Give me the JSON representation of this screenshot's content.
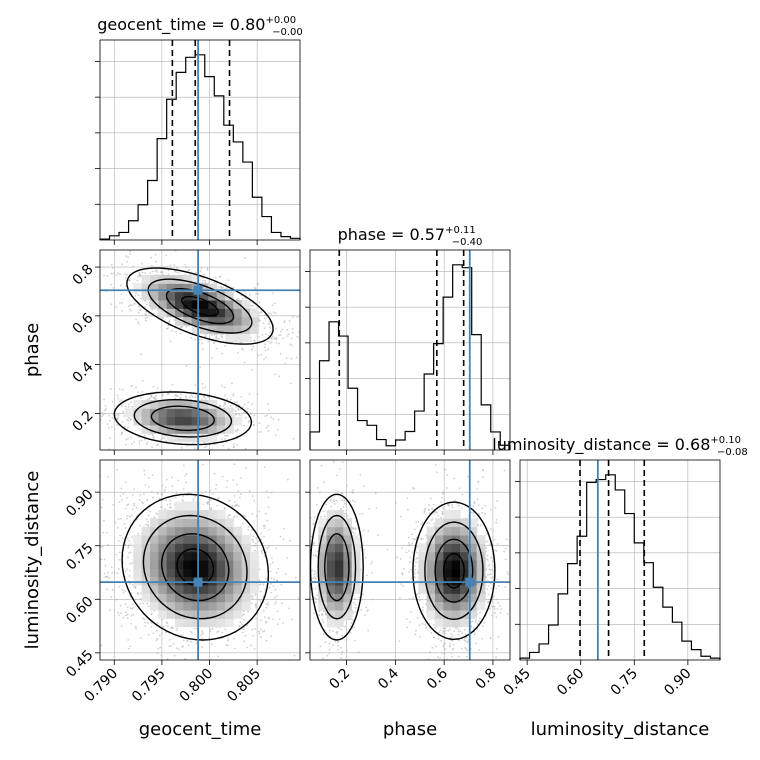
{
  "chart_data": {
    "type": "corner",
    "parameters": [
      "geocent_time",
      "phase",
      "luminosity_distance"
    ],
    "axis_labels": [
      "geocent_time",
      "phase",
      "luminosity_distance"
    ],
    "truths": {
      "geocent_time": 0.7988,
      "phase": 0.705,
      "luminosity_distance": 0.648
    },
    "colors": {
      "truth": "#4682b4",
      "hist": "#000000",
      "grid": "#b0b0b0",
      "scatter": "#b0b0b0"
    },
    "grid": true,
    "ranges": {
      "geocent_time": [
        0.7885,
        0.8095
      ],
      "phase": [
        0.05,
        0.87
      ],
      "luminosity_distance": [
        0.43,
        0.99
      ]
    },
    "ticks": {
      "geocent_time": [
        "0.790",
        "0.795",
        "0.800",
        "0.805"
      ],
      "phase": [
        "0.2",
        "0.4",
        "0.6",
        "0.8"
      ],
      "luminosity_distance": [
        "0.45",
        "0.60",
        "0.75",
        "0.90"
      ]
    },
    "titles": {
      "geocent_time": {
        "lead": "geocent_time = 0.80",
        "plus": "+0.00",
        "minus": "−0.00"
      },
      "phase": {
        "lead": "phase = 0.57",
        "plus": "+0.11",
        "minus": "−0.40"
      },
      "luminosity_distance": {
        "lead": "luminosity_distance = 0.68",
        "plus": "+0.10",
        "minus": "−0.08"
      }
    },
    "quantiles": {
      "geocent_time": [
        0.7961,
        0.7985,
        0.8021
      ],
      "phase": [
        0.17,
        0.57,
        0.68
      ],
      "luminosity_distance": [
        0.598,
        0.678,
        0.778
      ]
    },
    "histograms": {
      "geocent_time": {
        "edges": [
          0.7885,
          0.7895,
          0.7905,
          0.7915,
          0.7925,
          0.7935,
          0.7945,
          0.7955,
          0.7965,
          0.7975,
          0.7985,
          0.7995,
          0.8005,
          0.8015,
          0.8025,
          0.8035,
          0.8045,
          0.8055,
          0.8065,
          0.8075,
          0.8085,
          0.8095
        ],
        "counts": [
          1,
          5,
          9,
          23,
          42,
          71,
          121,
          168,
          200,
          218,
          221,
          195,
          172,
          137,
          117,
          93,
          51,
          28,
          9,
          4,
          2
        ]
      },
      "phase": {
        "edges": [
          0.05,
          0.089,
          0.128,
          0.167,
          0.206,
          0.245,
          0.284,
          0.323,
          0.362,
          0.401,
          0.44,
          0.479,
          0.518,
          0.557,
          0.596,
          0.635,
          0.674,
          0.713,
          0.752,
          0.791,
          0.83,
          0.87
        ],
        "counts": [
          38,
          188,
          270,
          240,
          130,
          62,
          52,
          22,
          9,
          21,
          39,
          82,
          160,
          224,
          322,
          390,
          384,
          243,
          95,
          38,
          10
        ]
      },
      "luminosity_distance": {
        "edges": [
          0.43,
          0.4567,
          0.4833,
          0.51,
          0.5367,
          0.5633,
          0.59,
          0.6167,
          0.6433,
          0.67,
          0.6967,
          0.7233,
          0.75,
          0.7767,
          0.8033,
          0.83,
          0.8567,
          0.8833,
          0.91,
          0.9367,
          0.9633,
          0.99
        ],
        "counts": [
          2,
          8,
          17,
          37,
          70,
          102,
          131,
          188,
          191,
          196,
          180,
          155,
          124,
          103,
          77,
          56,
          40,
          20,
          11,
          4,
          2
        ]
      }
    },
    "joint_modes": [
      {
        "x": "geocent_time",
        "y": "phase",
        "blobs": [
          {
            "cx": 0.799,
            "cy": 0.64,
            "sx": 0.0032,
            "sy": 0.065,
            "rho": -0.6,
            "w": 0.62
          },
          {
            "cx": 0.7972,
            "cy": 0.18,
            "sx": 0.003,
            "sy": 0.045,
            "rho": -0.15,
            "w": 0.38
          }
        ]
      },
      {
        "x": "geocent_time",
        "y": "luminosity_distance",
        "blobs": [
          {
            "cx": 0.7985,
            "cy": 0.69,
            "sx": 0.0032,
            "sy": 0.085,
            "rho": -0.1,
            "w": 1.0
          }
        ]
      },
      {
        "x": "phase",
        "y": "luminosity_distance",
        "blobs": [
          {
            "cx": 0.16,
            "cy": 0.69,
            "sx": 0.045,
            "sy": 0.085,
            "rho": 0.0,
            "w": 0.36
          },
          {
            "cx": 0.64,
            "cy": 0.68,
            "sx": 0.07,
            "sy": 0.08,
            "rho": 0.0,
            "w": 0.64
          }
        ]
      }
    ]
  }
}
